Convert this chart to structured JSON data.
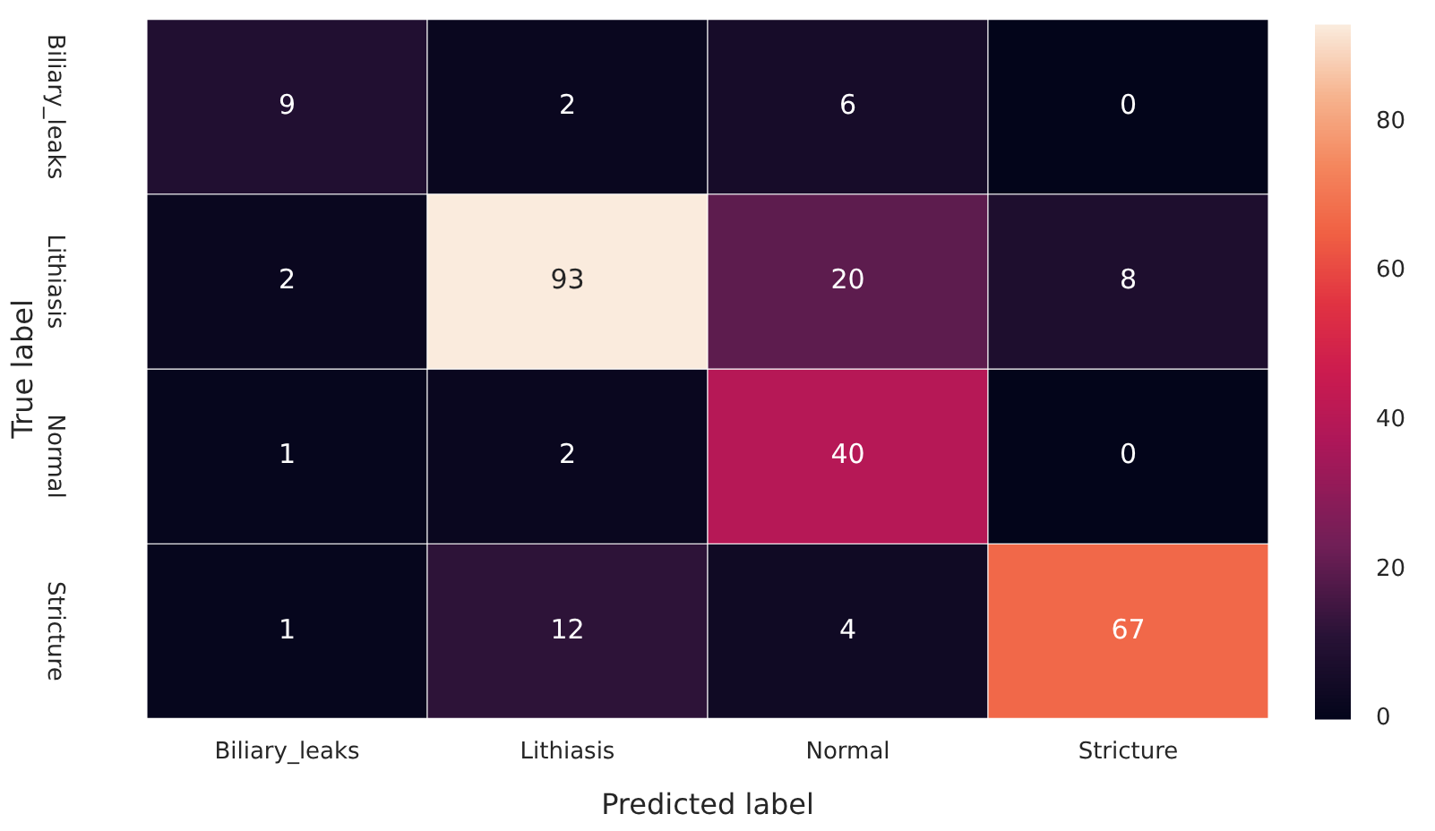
{
  "chart_data": {
    "type": "heatmap",
    "xlabel": "Predicted label",
    "ylabel": "True label",
    "categories": [
      "Biliary_leaks",
      "Lithiasis",
      "Normal",
      "Stricture"
    ],
    "y_categories": [
      "Biliary_leaks",
      "Lithiasis",
      "Normal",
      "Stricture"
    ],
    "cells": [
      [
        9,
        2,
        6,
        0
      ],
      [
        2,
        93,
        20,
        8
      ],
      [
        1,
        2,
        40,
        0
      ],
      [
        1,
        12,
        4,
        67
      ]
    ],
    "clim": [
      0,
      93
    ],
    "cticks": [
      0,
      20,
      40,
      60,
      80
    ],
    "data_labels": true
  }
}
